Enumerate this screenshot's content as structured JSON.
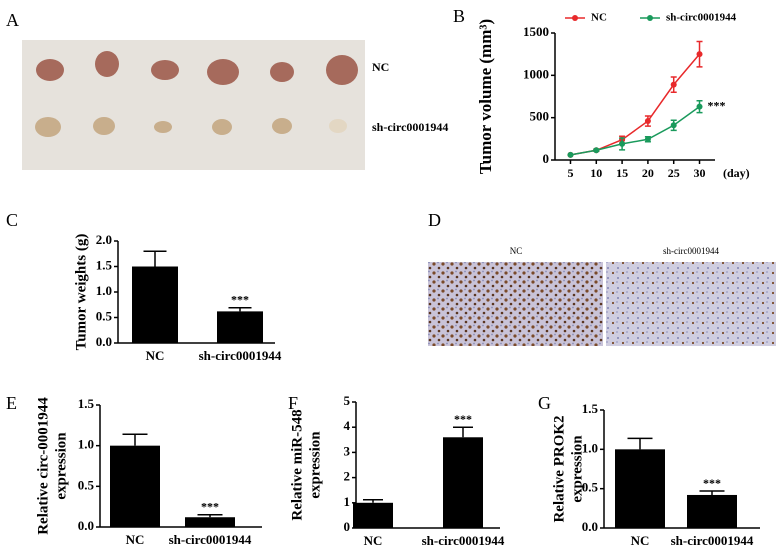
{
  "images": [
    {
      "panel": "A",
      "labels": [
        "NC",
        "sh-circ0001944"
      ]
    },
    {
      "panel": "D",
      "labels": [
        "NC",
        "sh-circ0001944"
      ]
    }
  ],
  "chart_data": [
    {
      "type": "line",
      "panel": "B",
      "ylabel": "Tumor volume (mm³)",
      "x_unit": "(day)",
      "x": [
        5,
        10,
        15,
        20,
        25,
        30
      ],
      "xlim": [
        2,
        33
      ],
      "xticks": [
        5,
        10,
        15,
        20,
        25,
        30
      ],
      "ylim": [
        0,
        1500
      ],
      "yticks": [
        0,
        500,
        1000,
        1500
      ],
      "series": [
        {
          "name": "NC",
          "color": "#e8292b",
          "values": [
            60,
            115,
            240,
            460,
            890,
            1250
          ],
          "errors": [
            0,
            10,
            40,
            60,
            90,
            150
          ]
        },
        {
          "name": "sh-circ0001944",
          "color": "#1a9a5c",
          "values": [
            60,
            115,
            190,
            245,
            410,
            630
          ],
          "errors": [
            0,
            10,
            70,
            30,
            60,
            70
          ]
        }
      ],
      "annotation": "***"
    },
    {
      "type": "bar",
      "panel": "C",
      "ylabel": [
        "Tumor weights (g)"
      ],
      "categories": [
        "NC",
        "sh-circ0001944"
      ],
      "values": [
        1.5,
        0.62
      ],
      "errors": [
        0.3,
        0.07
      ],
      "color": "#000000",
      "ylim": [
        0,
        2
      ],
      "yticks": [
        {
          "value": 0,
          "label": "0.0"
        },
        0.5,
        {
          "value": 1,
          "label": "1.0"
        },
        1.5,
        {
          "value": 2,
          "label": "2.0"
        }
      ],
      "annotation": "***"
    },
    {
      "type": "bar",
      "panel": "E",
      "ylabel": [
        "Relative circ-0001944",
        "expression"
      ],
      "categories": [
        "NC",
        "sh-circ0001944"
      ],
      "values": [
        1.0,
        0.12
      ],
      "errors": [
        0.14,
        0.03
      ],
      "color": "#000000",
      "ylim": [
        0,
        1.5
      ],
      "yticks": [
        {
          "value": 0,
          "label": "0.0"
        },
        0.5,
        {
          "value": 1,
          "label": "1.0"
        },
        1.5
      ],
      "annotation": "***"
    },
    {
      "type": "bar",
      "panel": "F",
      "ylabel": [
        "Relative miR-548",
        "expression"
      ],
      "categories": [
        "NC",
        "sh-circ0001944"
      ],
      "values": [
        1.0,
        3.6
      ],
      "errors": [
        0.12,
        0.4
      ],
      "color": "#000000",
      "ylim": [
        0,
        5
      ],
      "yticks": [
        0,
        1,
        2,
        3,
        4,
        5
      ],
      "annotation": "***"
    },
    {
      "type": "bar",
      "panel": "G",
      "ylabel": [
        "Relative PROK2",
        "expression"
      ],
      "categories": [
        "NC",
        "sh-circ0001944"
      ],
      "values": [
        1.0,
        0.42
      ],
      "errors": [
        0.14,
        0.05
      ],
      "color": "#000000",
      "ylim": [
        0,
        1.5
      ],
      "yticks": [
        {
          "value": 0,
          "label": "0.0"
        },
        0.5,
        {
          "value": 1,
          "label": "1.0"
        },
        1.5
      ],
      "annotation": "***"
    }
  ]
}
